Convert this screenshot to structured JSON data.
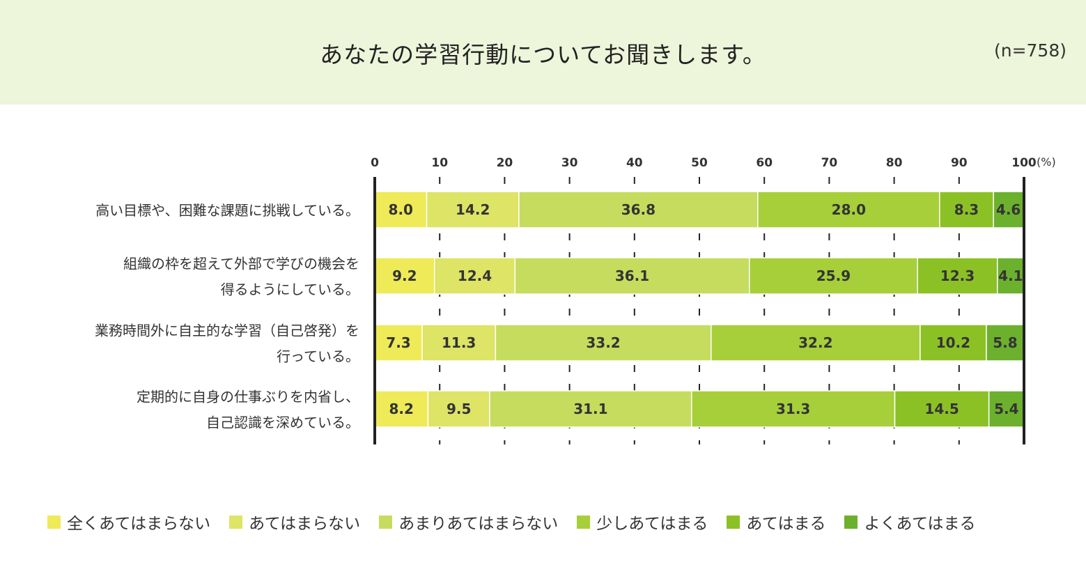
{
  "header": {
    "title": "あなたの学習行動についてお聞きします。",
    "sample_size": "(n=758)"
  },
  "chart_data": {
    "type": "bar",
    "orientation": "horizontal",
    "stacked": true,
    "unit_label": "(%)",
    "xlim": [
      0,
      100
    ],
    "x_ticks": [
      "0",
      "10",
      "20",
      "30",
      "40",
      "50",
      "60",
      "70",
      "80",
      "90",
      "100"
    ],
    "categories": [
      [
        "高い目標や、困難な課題に挑戦している。"
      ],
      [
        "組織の枠を超えて外部で学びの機会を",
        "得るようにしている。"
      ],
      [
        "業務時間外に自主的な学習（自己啓発）を",
        "行っている。"
      ],
      [
        "定期的に自身の仕事ぶりを内省し、",
        "自己認識を深めている。"
      ]
    ],
    "series": [
      {
        "name": "全くあてはまらない",
        "color": "#eeea58",
        "values": [
          "8.0",
          "9.2",
          "7.3",
          "8.2"
        ]
      },
      {
        "name": "あてはまらない",
        "color": "#dde466",
        "values": [
          "14.2",
          "12.4",
          "11.3",
          "9.5"
        ]
      },
      {
        "name": "あまりあてはまらない",
        "color": "#c6dc5e",
        "values": [
          "36.8",
          "36.1",
          "33.2",
          "31.1"
        ]
      },
      {
        "name": "少しあてはまる",
        "color": "#a6cf3a",
        "values": [
          "28.0",
          "25.9",
          "32.2",
          "31.3"
        ]
      },
      {
        "name": "あてはまる",
        "color": "#8cc126",
        "values": [
          "8.3",
          "12.3",
          "10.2",
          "14.5"
        ]
      },
      {
        "name": "よくあてはまる",
        "color": "#6cb12e",
        "values": [
          "4.6",
          "4.1",
          "5.8",
          "5.4"
        ]
      }
    ],
    "grid": "dashed vertical",
    "legend_position": "bottom"
  }
}
